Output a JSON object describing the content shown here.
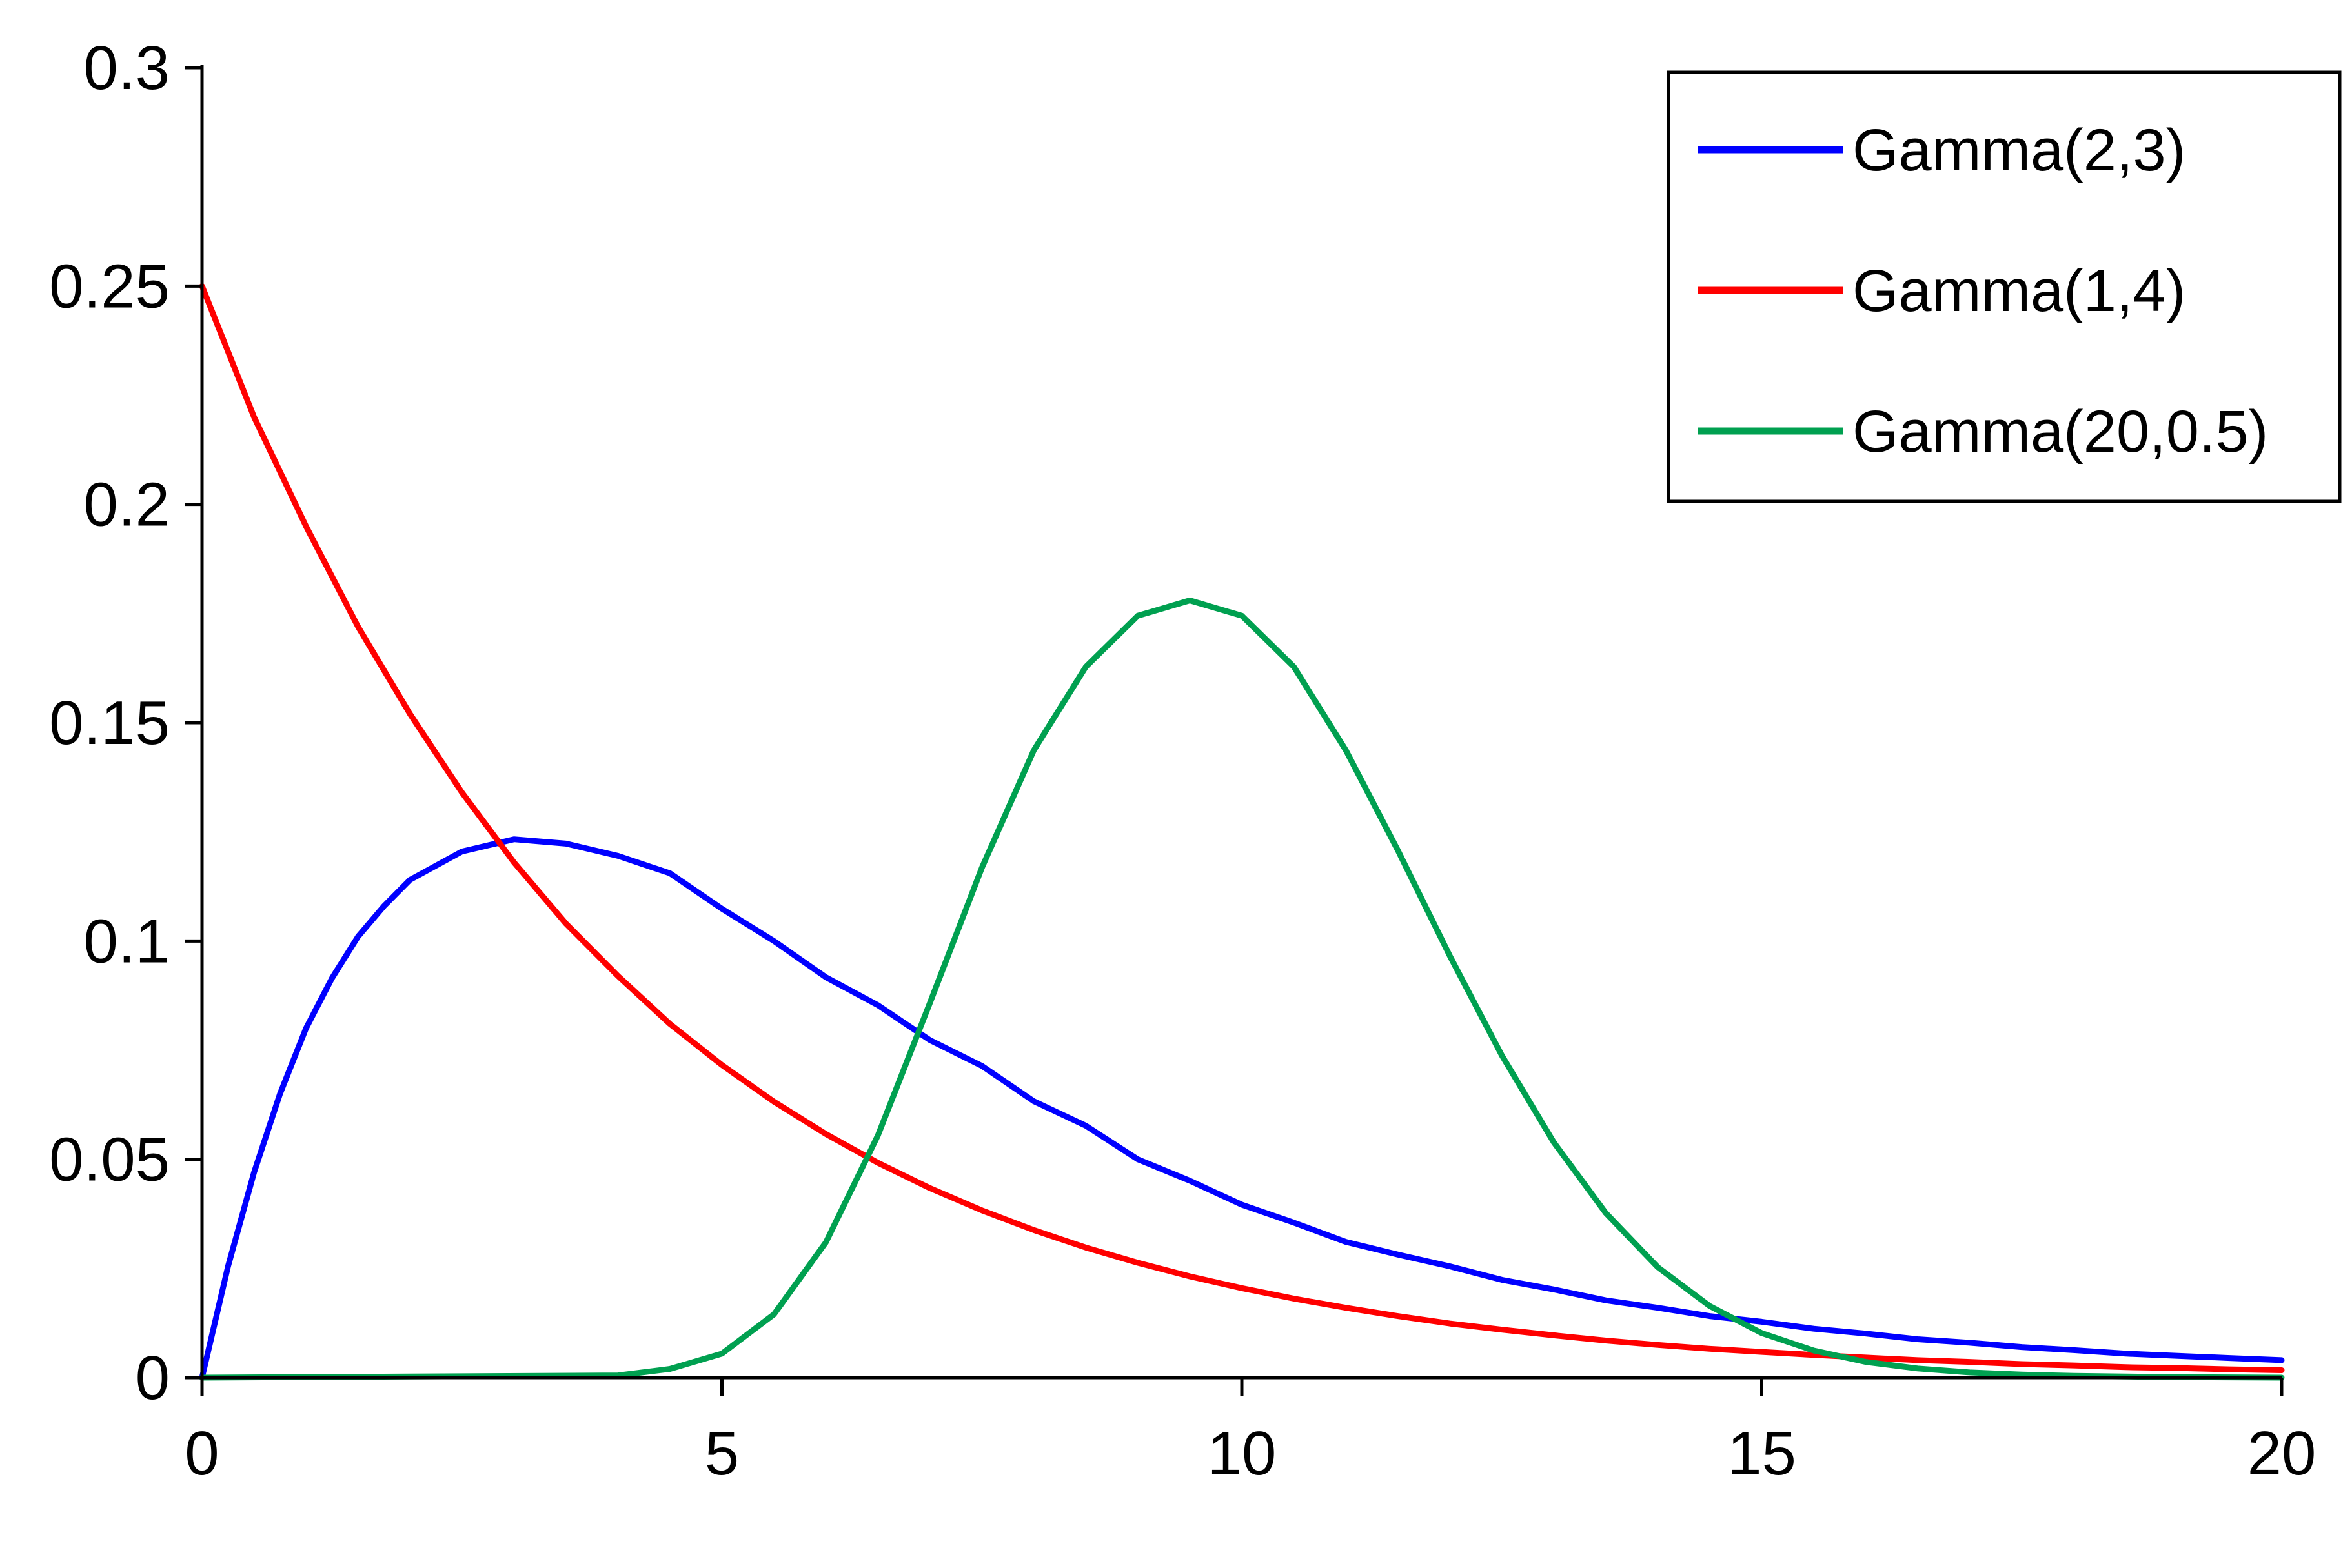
{
  "chart_data": {
    "type": "line",
    "xlim": [
      0,
      20
    ],
    "ylim": [
      0,
      0.3
    ],
    "xticks": [
      0,
      5,
      10,
      15,
      20
    ],
    "xtick_labels": [
      "0",
      "5",
      "10",
      "15",
      "20"
    ],
    "yticks": [
      0,
      0.05,
      0.1,
      0.15,
      0.2,
      0.25,
      0.3
    ],
    "ytick_labels": [
      "0",
      "0.05",
      "0.1",
      "0.15",
      "0.2",
      "0.25",
      "0.3"
    ],
    "grid": false,
    "legend_position": "top-right",
    "series": [
      {
        "name": "Gamma(2,3)",
        "color": "#0000ff",
        "x": [
          0,
          0.25,
          0.5,
          0.75,
          1,
          1.25,
          1.5,
          1.75,
          2,
          2.5,
          3,
          3.5,
          4,
          4.5,
          5,
          5.5,
          6,
          6.5,
          7,
          7.5,
          8,
          8.5,
          9,
          9.5,
          10,
          10.5,
          11,
          11.5,
          12,
          12.5,
          13,
          13.5,
          14,
          14.5,
          15,
          15.5,
          16,
          16.5,
          17,
          17.5,
          18,
          18.5,
          19,
          19.5,
          20
        ],
        "y": [
          0,
          0.0255,
          0.047,
          0.065,
          0.08,
          0.0915,
          0.101,
          0.108,
          0.114,
          0.1205,
          0.1233,
          0.1223,
          0.1195,
          0.1155,
          0.1074,
          0.1,
          0.0917,
          0.0853,
          0.0773,
          0.0714,
          0.0633,
          0.0577,
          0.05,
          0.0451,
          0.0396,
          0.0355,
          0.0311,
          0.0282,
          0.0255,
          0.0224,
          0.0202,
          0.0177,
          0.016,
          0.0141,
          0.0128,
          0.0112,
          0.0101,
          0.0088,
          0.008,
          0.007,
          0.0063,
          0.0055,
          0.005,
          0.0045,
          0.004
        ]
      },
      {
        "name": "Gamma(1,4)",
        "color": "#ff0000",
        "x": [
          0,
          0.5,
          1,
          1.5,
          2,
          2.5,
          3,
          3.5,
          4,
          4.5,
          5,
          5.5,
          6,
          6.5,
          7,
          7.5,
          8,
          8.5,
          9,
          9.5,
          10,
          10.5,
          11,
          11.5,
          12,
          12.5,
          13,
          13.5,
          14,
          14.5,
          15,
          15.5,
          16,
          16.5,
          17,
          17.5,
          18,
          18.5,
          19,
          19.5,
          20
        ],
        "y": [
          0.25,
          0.22,
          0.195,
          0.172,
          0.152,
          0.134,
          0.118,
          0.104,
          0.092,
          0.081,
          0.0716,
          0.0632,
          0.0558,
          0.0492,
          0.0434,
          0.0383,
          0.0338,
          0.0298,
          0.0263,
          0.0232,
          0.0205,
          0.0181,
          0.016,
          0.0141,
          0.0124,
          0.011,
          0.0097,
          0.0085,
          0.0075,
          0.0066,
          0.0059,
          0.0052,
          0.0046,
          0.004,
          0.0036,
          0.0031,
          0.0028,
          0.0024,
          0.0022,
          0.0019,
          0.0017
        ]
      },
      {
        "name": "Gamma(20,0.5)",
        "color": "#00a050",
        "x": [
          0,
          4,
          4.5,
          5,
          5.5,
          6,
          6.5,
          7,
          7.5,
          8,
          8.5,
          9,
          9.5,
          10,
          10.5,
          11,
          11.5,
          12,
          12.5,
          13,
          13.5,
          14,
          14.5,
          15,
          15.5,
          16,
          16.5,
          17,
          17.5,
          18,
          19,
          20
        ],
        "y": [
          0,
          0.0005,
          0.002,
          0.0055,
          0.0145,
          0.031,
          0.0555,
          0.0858,
          0.1168,
          0.1437,
          0.1628,
          0.1745,
          0.178,
          0.1745,
          0.1628,
          0.1437,
          0.1208,
          0.0966,
          0.0738,
          0.0539,
          0.0377,
          0.0253,
          0.0164,
          0.0102,
          0.0062,
          0.0036,
          0.0021,
          0.0012,
          0.0007,
          0.0004,
          0.0001,
          0
        ]
      }
    ]
  }
}
